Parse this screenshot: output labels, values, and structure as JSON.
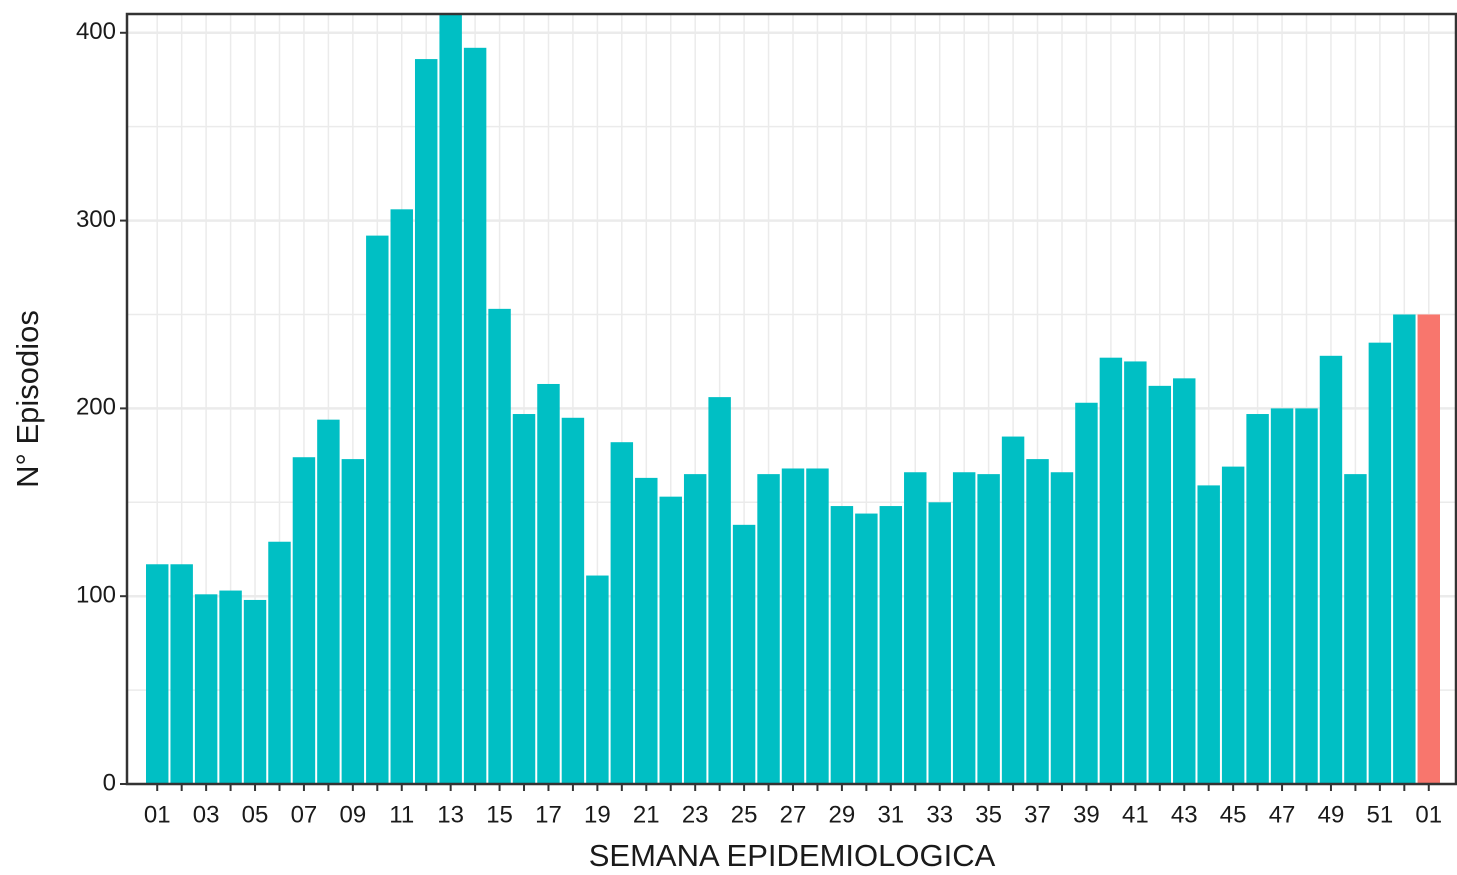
{
  "chart_data": {
    "type": "bar",
    "x_label": "SEMANA EPIDEMIOLOGICA",
    "y_label": "N° Episodios",
    "categories": [
      "01",
      null,
      "03",
      null,
      "05",
      null,
      "07",
      null,
      "09",
      null,
      "11",
      null,
      "13",
      null,
      "15",
      null,
      "17",
      null,
      "19",
      null,
      "21",
      null,
      "23",
      null,
      "25",
      null,
      "27",
      null,
      "29",
      null,
      "31",
      null,
      "33",
      null,
      "35",
      null,
      "37",
      null,
      "39",
      null,
      "41",
      null,
      "43",
      null,
      "45",
      null,
      "47",
      null,
      "49",
      null,
      "51",
      null,
      "01"
    ],
    "values": [
      117,
      117,
      101,
      103,
      98,
      129,
      174,
      194,
      173,
      292,
      306,
      386,
      410,
      392,
      253,
      197,
      213,
      195,
      111,
      182,
      163,
      153,
      165,
      206,
      138,
      165,
      168,
      168,
      148,
      144,
      148,
      166,
      150,
      166,
      165,
      185,
      173,
      166,
      203,
      227,
      225,
      212,
      216,
      159,
      169,
      197,
      200,
      200,
      228,
      165,
      235,
      250,
      250
    ],
    "colors": [
      "#00bfc4",
      "#00bfc4",
      "#00bfc4",
      "#00bfc4",
      "#00bfc4",
      "#00bfc4",
      "#00bfc4",
      "#00bfc4",
      "#00bfc4",
      "#00bfc4",
      "#00bfc4",
      "#00bfc4",
      "#00bfc4",
      "#00bfc4",
      "#00bfc4",
      "#00bfc4",
      "#00bfc4",
      "#00bfc4",
      "#00bfc4",
      "#00bfc4",
      "#00bfc4",
      "#00bfc4",
      "#00bfc4",
      "#00bfc4",
      "#00bfc4",
      "#00bfc4",
      "#00bfc4",
      "#00bfc4",
      "#00bfc4",
      "#00bfc4",
      "#00bfc4",
      "#00bfc4",
      "#00bfc4",
      "#00bfc4",
      "#00bfc4",
      "#00bfc4",
      "#00bfc4",
      "#00bfc4",
      "#00bfc4",
      "#00bfc4",
      "#00bfc4",
      "#00bfc4",
      "#00bfc4",
      "#00bfc4",
      "#00bfc4",
      "#00bfc4",
      "#00bfc4",
      "#00bfc4",
      "#00bfc4",
      "#00bfc4",
      "#00bfc4",
      "#00bfc4",
      "#f8766d"
    ],
    "ylim": [
      0,
      410
    ],
    "yticks": [
      0,
      100,
      200,
      300,
      400
    ],
    "yminorticks": [
      50,
      150,
      250,
      350
    ],
    "grid": true
  }
}
